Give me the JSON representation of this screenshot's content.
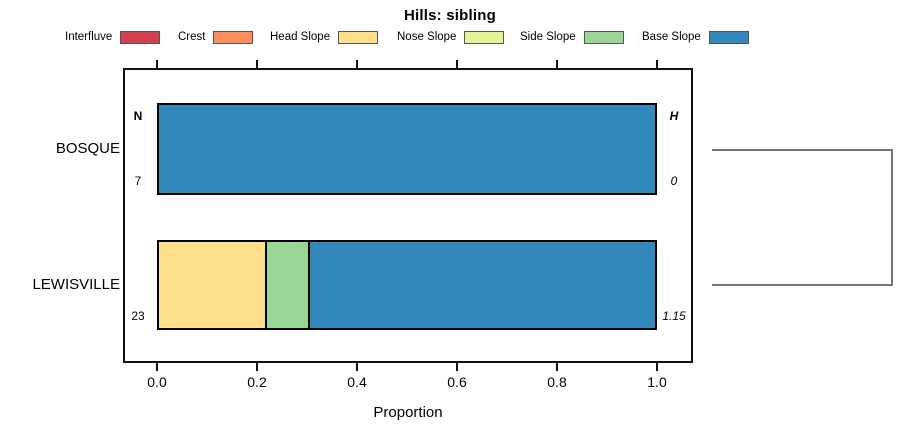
{
  "title": "Hills: sibling",
  "legend": {
    "items": [
      {
        "label": "Interfluve",
        "color": "#d53e4f"
      },
      {
        "label": "Crest",
        "color": "#fc8d59"
      },
      {
        "label": "Head Slope",
        "color": "#fee08b"
      },
      {
        "label": "Nose Slope",
        "color": "#e6f598"
      },
      {
        "label": "Side Slope",
        "color": "#99d594"
      },
      {
        "label": "Base Slope",
        "color": "#3288bd"
      }
    ]
  },
  "x_axis": {
    "label": "Proportion",
    "ticks": [
      "0.0",
      "0.2",
      "0.4",
      "0.6",
      "0.8",
      "1.0"
    ]
  },
  "left_annotation_header": "N",
  "right_annotation_header": "H",
  "rows": [
    {
      "label": "BOSQUE",
      "n": "7",
      "h": "0",
      "segments": [
        {
          "name": "Base Slope",
          "color": "#3288bd",
          "proportion": 1.0
        }
      ]
    },
    {
      "label": "LEWISVILLE",
      "n": "23",
      "h": "1.15",
      "segments": [
        {
          "name": "Head Slope",
          "color": "#fee08b",
          "proportion": 0.217
        },
        {
          "name": "Side Slope",
          "color": "#99d594",
          "proportion": 0.087
        },
        {
          "name": "Base Slope",
          "color": "#3288bd",
          "proportion": 0.696
        }
      ]
    }
  ],
  "chart_data": {
    "type": "bar",
    "orientation": "horizontal-stacked",
    "title": "Hills: sibling",
    "xlabel": "Proportion",
    "xlim": [
      0,
      1
    ],
    "xticks": [
      0.0,
      0.2,
      0.4,
      0.6,
      0.8,
      1.0
    ],
    "categories": [
      "BOSQUE",
      "LEWISVILLE"
    ],
    "series": [
      {
        "name": "Interfluve",
        "color": "#d53e4f",
        "values": [
          0,
          0
        ]
      },
      {
        "name": "Crest",
        "color": "#fc8d59",
        "values": [
          0,
          0
        ]
      },
      {
        "name": "Head Slope",
        "color": "#fee08b",
        "values": [
          0,
          0.217
        ]
      },
      {
        "name": "Nose Slope",
        "color": "#e6f598",
        "values": [
          0,
          0
        ]
      },
      {
        "name": "Side Slope",
        "color": "#99d594",
        "values": [
          0,
          0.087
        ]
      },
      {
        "name": "Base Slope",
        "color": "#3288bd",
        "values": [
          1.0,
          0.696
        ]
      }
    ],
    "annotations": {
      "N": [
        "7",
        "23"
      ],
      "H": [
        "0",
        "1.15"
      ]
    },
    "legend_position": "top",
    "grid": false,
    "right_dendrogram": {
      "joins": [
        [
          "BOSQUE",
          "LEWISVILLE"
        ]
      ]
    }
  }
}
